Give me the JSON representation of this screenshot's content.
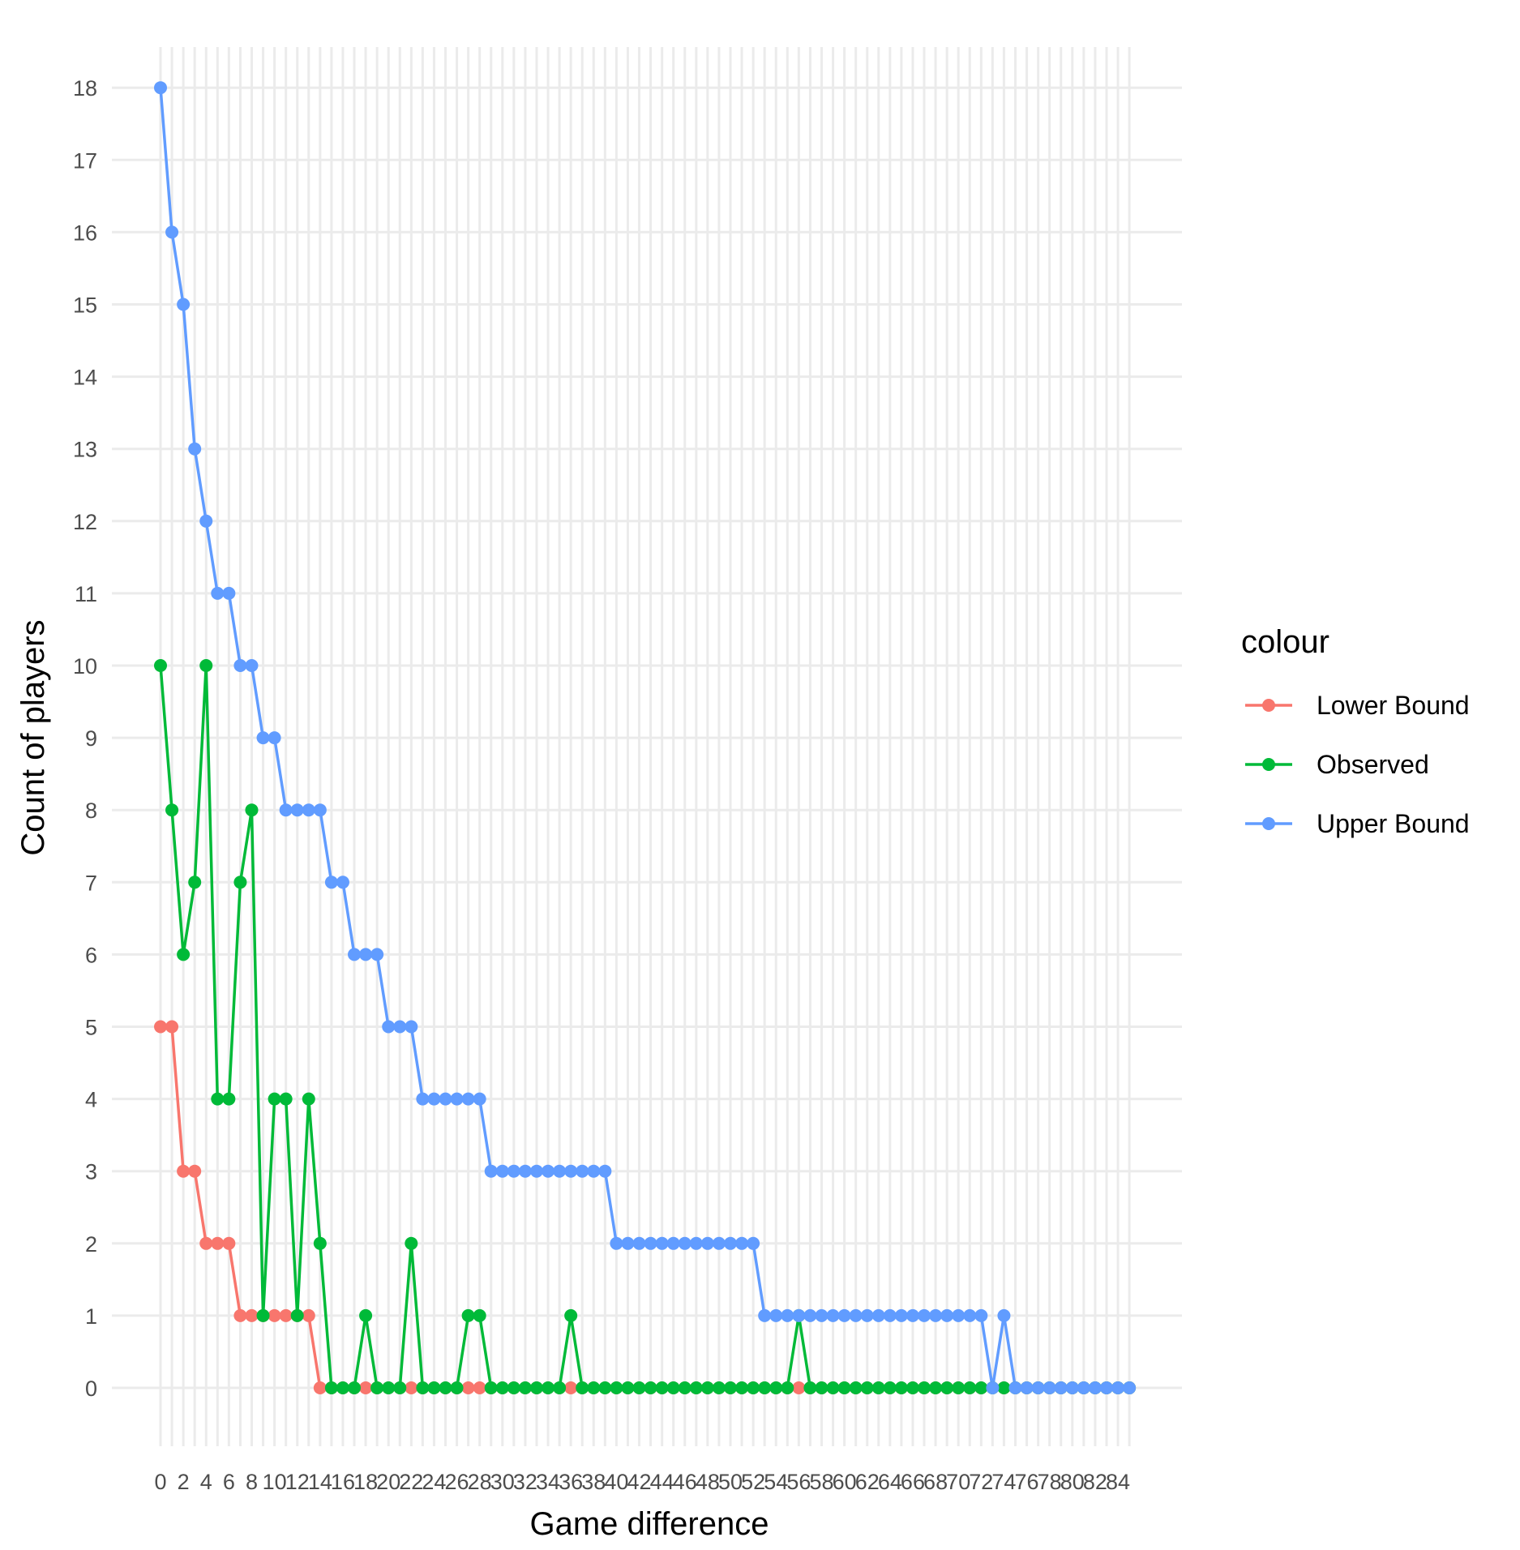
{
  "chart_data": {
    "type": "line",
    "xlabel": "Game difference",
    "ylabel": "Count of players",
    "xlim": [
      0,
      85
    ],
    "ylim": [
      0,
      18
    ],
    "x_ticks": [
      0,
      2,
      4,
      6,
      8,
      10,
      12,
      14,
      16,
      18,
      20,
      22,
      24,
      26,
      28,
      30,
      32,
      34,
      36,
      38,
      40,
      42,
      44,
      46,
      48,
      50,
      52,
      54,
      56,
      58,
      60,
      62,
      64,
      66,
      68,
      70,
      72,
      74,
      76,
      78,
      80,
      82,
      84
    ],
    "y_ticks": [
      0,
      1,
      2,
      3,
      4,
      5,
      6,
      7,
      8,
      9,
      10,
      11,
      12,
      13,
      14,
      15,
      16,
      17,
      18
    ],
    "grid": true,
    "legend": {
      "title": "colour",
      "position": "right"
    },
    "series": [
      {
        "name": "Lower Bound",
        "color": "#F8766D",
        "x": [
          0,
          1,
          2,
          3,
          4,
          5,
          6,
          7,
          8,
          9,
          10,
          11,
          12,
          13,
          14,
          15,
          16,
          17,
          18,
          19,
          20,
          21,
          22,
          23,
          24,
          25,
          26,
          27,
          28,
          29,
          30,
          31,
          32,
          33,
          34,
          35,
          36,
          37,
          38,
          39,
          40,
          41,
          42,
          43,
          44,
          45,
          46,
          47,
          48,
          49,
          50,
          51,
          52,
          53,
          54,
          55,
          56,
          57,
          58,
          59,
          60,
          61,
          62,
          63,
          64,
          65,
          66,
          67,
          68,
          69,
          70,
          71,
          72,
          73,
          74,
          75,
          76,
          77,
          78,
          79,
          80,
          81,
          82,
          83,
          84,
          85
        ],
        "y": [
          5,
          5,
          3,
          3,
          2,
          2,
          2,
          1,
          1,
          1,
          1,
          1,
          1,
          1,
          0,
          0,
          0,
          0,
          0,
          0,
          0,
          0,
          0,
          0,
          0,
          0,
          0,
          0,
          0,
          0,
          0,
          0,
          0,
          0,
          0,
          0,
          0,
          0,
          0,
          0,
          0,
          0,
          0,
          0,
          0,
          0,
          0,
          0,
          0,
          0,
          0,
          0,
          0,
          0,
          0,
          0,
          0,
          0,
          0,
          0,
          0,
          0,
          0,
          0,
          0,
          0,
          0,
          0,
          0,
          0,
          0,
          0,
          0,
          0,
          0,
          0,
          0,
          0,
          0,
          0,
          0,
          0,
          0,
          0,
          0,
          0
        ]
      },
      {
        "name": "Observed",
        "color": "#00BA38",
        "x": [
          0,
          1,
          2,
          3,
          4,
          5,
          6,
          7,
          8,
          9,
          10,
          11,
          12,
          13,
          14,
          15,
          16,
          17,
          18,
          19,
          20,
          21,
          22,
          23,
          24,
          25,
          26,
          27,
          28,
          29,
          30,
          31,
          32,
          33,
          34,
          35,
          36,
          37,
          38,
          39,
          40,
          41,
          42,
          43,
          44,
          45,
          46,
          47,
          48,
          49,
          50,
          51,
          52,
          53,
          54,
          55,
          56,
          57,
          58,
          59,
          60,
          61,
          62,
          63,
          64,
          65,
          66,
          67,
          68,
          69,
          70,
          71,
          72,
          73,
          74,
          75,
          76,
          77,
          78,
          79,
          80,
          81,
          82,
          83,
          84,
          85
        ],
        "y": [
          10,
          8,
          6,
          7,
          10,
          4,
          4,
          7,
          8,
          1,
          4,
          4,
          1,
          4,
          2,
          0,
          0,
          0,
          1,
          0,
          0,
          0,
          2,
          0,
          0,
          0,
          0,
          1,
          1,
          0,
          0,
          0,
          0,
          0,
          0,
          0,
          1,
          0,
          0,
          0,
          0,
          0,
          0,
          0,
          0,
          0,
          0,
          0,
          0,
          0,
          0,
          0,
          0,
          0,
          0,
          0,
          1,
          0,
          0,
          0,
          0,
          0,
          0,
          0,
          0,
          0,
          0,
          0,
          0,
          0,
          0,
          0,
          0,
          0,
          0,
          0,
          0,
          0,
          0,
          0,
          0,
          0,
          0,
          0,
          0,
          0
        ]
      },
      {
        "name": "Upper Bound",
        "color": "#619CFF",
        "x": [
          0,
          1,
          2,
          3,
          4,
          5,
          6,
          7,
          8,
          9,
          10,
          11,
          12,
          13,
          14,
          15,
          16,
          17,
          18,
          19,
          20,
          21,
          22,
          23,
          24,
          25,
          26,
          27,
          28,
          29,
          30,
          31,
          32,
          33,
          34,
          35,
          36,
          37,
          38,
          39,
          40,
          41,
          42,
          43,
          44,
          45,
          46,
          47,
          48,
          49,
          50,
          51,
          52,
          53,
          54,
          55,
          56,
          57,
          58,
          59,
          60,
          61,
          62,
          63,
          64,
          65,
          66,
          67,
          68,
          69,
          70,
          71,
          72,
          73,
          74,
          75,
          76,
          77,
          78,
          79,
          80,
          81,
          82,
          83,
          84,
          85
        ],
        "y": [
          18,
          16,
          15,
          13,
          12,
          11,
          11,
          10,
          10,
          9,
          9,
          8,
          8,
          8,
          8,
          7,
          7,
          6,
          6,
          6,
          5,
          5,
          5,
          4,
          4,
          4,
          4,
          4,
          4,
          3,
          3,
          3,
          3,
          3,
          3,
          3,
          3,
          3,
          3,
          3,
          2,
          2,
          2,
          2,
          2,
          2,
          2,
          2,
          2,
          2,
          2,
          2,
          2,
          1,
          1,
          1,
          1,
          1,
          1,
          1,
          1,
          1,
          1,
          1,
          1,
          1,
          1,
          1,
          1,
          1,
          1,
          1,
          1,
          0,
          1,
          0,
          0,
          0,
          0,
          0,
          0,
          0,
          0,
          0,
          0,
          0
        ]
      }
    ]
  }
}
